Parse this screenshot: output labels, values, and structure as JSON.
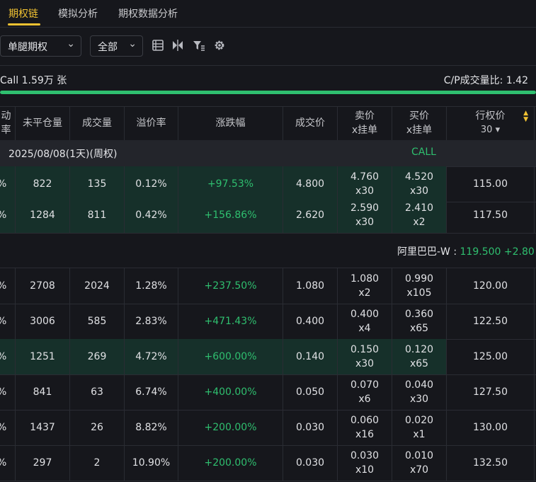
{
  "tabs": [
    {
      "label": "期权链",
      "active": true
    },
    {
      "label": "模拟分析",
      "active": false
    },
    {
      "label": "期权数据分析",
      "active": false
    }
  ],
  "toolbar": {
    "option_type": "单腿期权",
    "filter": "全部",
    "icons": [
      "list-icon",
      "compare-icon",
      "filter-icon",
      "settings-icon"
    ]
  },
  "summary": {
    "call_volume": "Call 1.59万 张",
    "cp_ratio": "C/P成交量比:  1.42",
    "ratio_fill_fraction": 1.0
  },
  "columns": [
    "动率",
    "未平仓量",
    "成交量",
    "溢价率",
    "涨跌幅",
    "成交价",
    "卖价\nx挂单",
    "买价\nx挂单",
    "行权价\n30 ▾"
  ],
  "header": {
    "c0": "动率",
    "c1": "未平仓量",
    "c2": "成交量",
    "c3": "溢价率",
    "c4": "涨跌幅",
    "c5": "成交价",
    "c6a": "卖价",
    "c6b": "x挂单",
    "c7a": "买价",
    "c7b": "x挂单",
    "c8a": "行权价",
    "c8b": "30 ▾"
  },
  "group": {
    "date": "2025/08/08(1天)(周权)",
    "side": "CALL"
  },
  "rows_top": [
    {
      "iv": "%",
      "oi": "822",
      "vol": "135",
      "prem": "0.12%",
      "chg": "+97.53%",
      "last": "4.800",
      "ask": "4.760",
      "ask_sz": "x30",
      "bid": "4.520",
      "bid_sz": "x30",
      "strike": "115.00"
    },
    {
      "iv": "%",
      "oi": "1284",
      "vol": "811",
      "prem": "0.42%",
      "chg": "+156.86%",
      "last": "2.620",
      "ask": "2.590",
      "ask_sz": "x30",
      "bid": "2.410",
      "bid_sz": "x2",
      "strike": "117.50"
    }
  ],
  "underlying": {
    "name": "阿里巴巴-W : ",
    "price": "119.500 +2.80"
  },
  "rows_bottom": [
    {
      "iv": "%",
      "oi": "2708",
      "vol": "2024",
      "prem": "1.28%",
      "chg": "+237.50%",
      "last": "1.080",
      "ask": "1.080",
      "ask_sz": "x2",
      "bid": "0.990",
      "bid_sz": "x105",
      "strike": "120.00"
    },
    {
      "iv": "%",
      "oi": "3006",
      "vol": "585",
      "prem": "2.83%",
      "chg": "+471.43%",
      "last": "0.400",
      "ask": "0.400",
      "ask_sz": "x4",
      "bid": "0.360",
      "bid_sz": "x65",
      "strike": "122.50"
    },
    {
      "iv": "%",
      "oi": "1251",
      "vol": "269",
      "prem": "4.72%",
      "chg": "+600.00%",
      "last": "0.140",
      "ask": "0.150",
      "ask_sz": "x30",
      "bid": "0.120",
      "bid_sz": "x65",
      "strike": "125.00"
    },
    {
      "iv": "%",
      "oi": "841",
      "vol": "63",
      "prem": "6.74%",
      "chg": "+400.00%",
      "last": "0.050",
      "ask": "0.070",
      "ask_sz": "x6",
      "bid": "0.040",
      "bid_sz": "x30",
      "strike": "127.50"
    },
    {
      "iv": "%",
      "oi": "1437",
      "vol": "26",
      "prem": "8.82%",
      "chg": "+200.00%",
      "last": "0.030",
      "ask": "0.060",
      "ask_sz": "x16",
      "bid": "0.020",
      "bid_sz": "x1",
      "strike": "130.00"
    },
    {
      "iv": "%",
      "oi": "297",
      "vol": "2",
      "prem": "10.90%",
      "chg": "+200.00%",
      "last": "0.030",
      "ask": "0.030",
      "ask_sz": "x10",
      "bid": "0.010",
      "bid_sz": "x70",
      "strike": "132.50"
    }
  ],
  "colors": {
    "accent": "#f1c232",
    "up": "#2fbf6f",
    "background": "#16171c",
    "itm_tint": "#16302a"
  }
}
